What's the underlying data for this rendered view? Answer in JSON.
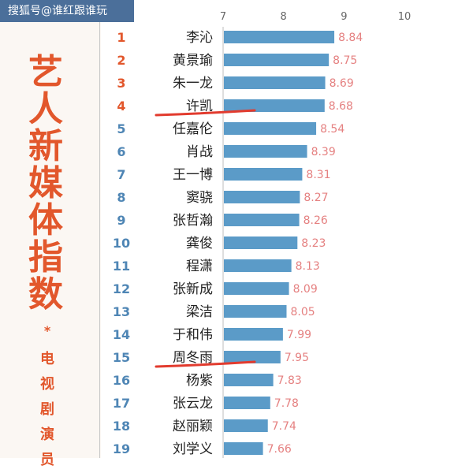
{
  "watermark": "搜狐号@谁红跟谁玩",
  "side_title": [
    "艺",
    "人",
    "新",
    "媒",
    "体",
    "指",
    "数"
  ],
  "side_asterisk": "*",
  "side_subtitle": [
    "电",
    "视",
    "剧",
    "演",
    "员"
  ],
  "colors": {
    "bar": "#5b9bc8",
    "rank": "#4f86b5",
    "top_rank": "#e2572c",
    "value": "#e58181",
    "underline": "#e23b2e",
    "title": "#e2572c"
  },
  "chart_data": {
    "type": "bar",
    "orientation": "horizontal",
    "title": "",
    "xlabel": "",
    "ylabel": "",
    "xlim": [
      7,
      10
    ],
    "ticks": [
      7,
      8,
      9,
      10
    ],
    "grid": false,
    "ranks": [
      1,
      2,
      3,
      4,
      5,
      6,
      7,
      8,
      9,
      10,
      11,
      12,
      13,
      14,
      15,
      16,
      17,
      18,
      19
    ],
    "categories": [
      "李沁",
      "黄景瑜",
      "朱一龙",
      "许凯",
      "任嘉伦",
      "肖战",
      "王一博",
      "窦骁",
      "张哲瀚",
      "龚俊",
      "程潇",
      "张新成",
      "梁洁",
      "于和伟",
      "周冬雨",
      "杨紫",
      "张云龙",
      "赵丽颖",
      "刘学义"
    ],
    "values": [
      8.84,
      8.75,
      8.69,
      8.68,
      8.54,
      8.39,
      8.31,
      8.27,
      8.26,
      8.23,
      8.13,
      8.09,
      8.05,
      7.99,
      7.95,
      7.83,
      7.78,
      7.74,
      7.66
    ],
    "value_labels": [
      "8.84",
      "8.75",
      "8.69",
      "8.68",
      "8.54",
      "8.39",
      "8.31",
      "8.27",
      "8.26",
      "8.23",
      "8.13",
      "8.09",
      "8.05",
      "7.99",
      "7.95",
      "7.83",
      "7.78",
      "7.74",
      "7.66"
    ],
    "underlined": [
      "许凯",
      "周冬雨"
    ]
  }
}
